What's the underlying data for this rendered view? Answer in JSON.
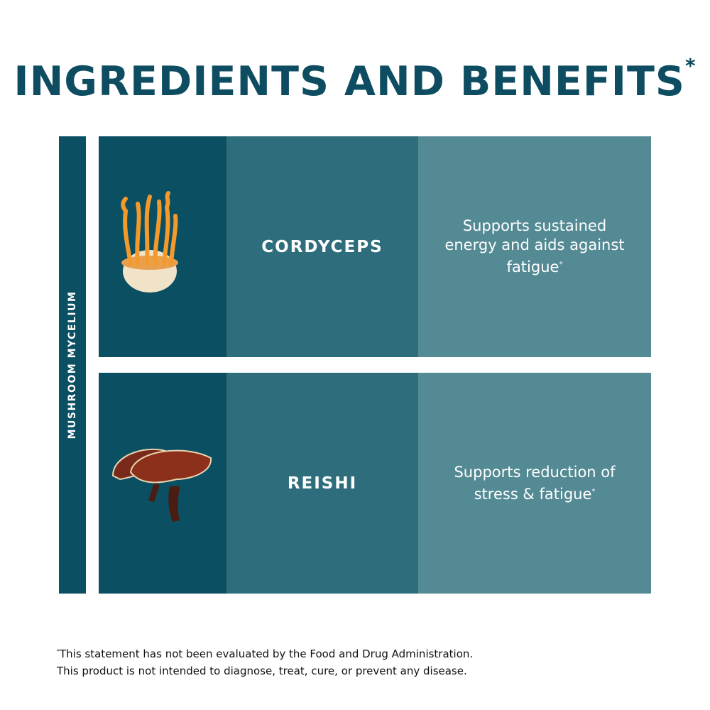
{
  "title": "INGREDIENTS AND BENEFITS",
  "title_mark": "*",
  "category_label": "MUSHROOM MYCELIUM",
  "rows": [
    {
      "name": "CORDYCEPS",
      "benefit": "Supports sustained energy and aids against fatigue",
      "mark": "*",
      "image": "cordyceps-mushroom"
    },
    {
      "name": "REISHI",
      "benefit": "Supports reduction of stress & fatigue",
      "mark": "*",
      "image": "reishi-mushroom"
    }
  ],
  "footer": {
    "mark": "*",
    "line1": "This statement has not been evaluated by the Food and Drug Administration.",
    "line2": "This product is not intended to diagnose, treat, cure, or prevent any disease."
  },
  "colors": {
    "title": "#0e4d61",
    "dark": "#0b4f63",
    "mid": "#2e6d7b",
    "light": "#548a94"
  }
}
